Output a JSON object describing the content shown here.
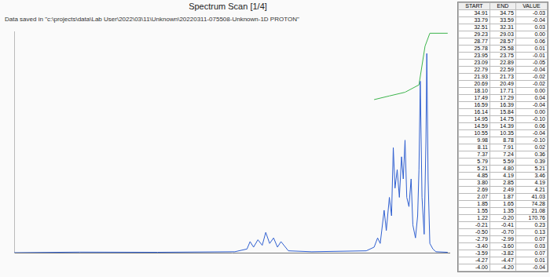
{
  "header": {
    "title": "Spectrum Scan [1/4]",
    "subtitle": "Data saved in \"c:\\projects\\data\\Lab User\\2022\\03\\11\\Unknown\\20220311-075508-Unknown-1D PROTON\""
  },
  "chart_data": {
    "type": "line",
    "xlim": [
      1,
      11
    ],
    "ylim": [
      0,
      120
    ],
    "tick_labels": false,
    "grid": false,
    "series": [
      {
        "color": "#2f5fd0",
        "x": [
          11,
          9.49,
          7.71,
          5.93,
          5.65,
          5.58,
          5.5,
          5.4,
          5.3,
          5.22,
          5.13,
          5.04,
          4.95,
          4.87,
          4.7,
          4.16,
          2.91,
          2.73,
          2.65,
          2.59,
          2.5,
          2.45,
          2.38,
          2.33,
          2.29,
          2.25,
          2.2,
          2.15,
          2.1,
          2.06,
          2.02,
          1.98,
          1.93,
          1.88,
          1.84,
          1.78,
          1.73,
          1.7,
          1.67,
          1.63,
          1.58,
          1.54,
          1.52,
          1.49,
          1.45,
          1.38,
          1.31,
          1.04
        ],
        "values": [
          0,
          0.3,
          0.2,
          0.5,
          2,
          6,
          3,
          7,
          4,
          11,
          5,
          8,
          3,
          6,
          1,
          0.5,
          1,
          3,
          8,
          5,
          23,
          12,
          30,
          20,
          57,
          35,
          45,
          30,
          52,
          40,
          61,
          30,
          25,
          40,
          15,
          8,
          20,
          45,
          93,
          30,
          10,
          60,
          108,
          40,
          5,
          2,
          0.5,
          0.2
        ]
      },
      {
        "color": "#3cb44b",
        "x": [
          2.73,
          2.38,
          2.02,
          1.7,
          1.56,
          1.45,
          1.04
        ],
        "values": [
          83,
          85,
          87,
          91,
          112,
          119,
          119
        ]
      }
    ]
  },
  "table": {
    "columns": [
      "START",
      "END",
      "VALUE"
    ],
    "rows": [
      [
        "34.91",
        "34.75",
        "-0.03"
      ],
      [
        "33.79",
        "33.59",
        "-0.04"
      ],
      [
        "32.51",
        "32.31",
        "0.03"
      ],
      [
        "29.23",
        "29.03",
        "0.00"
      ],
      [
        "28.77",
        "28.57",
        "0.06"
      ],
      [
        "25.78",
        "25.58",
        "0.01"
      ],
      [
        "23.95",
        "23.75",
        "-0.01"
      ],
      [
        "23.09",
        "22.89",
        "-0.05"
      ],
      [
        "22.79",
        "22.59",
        "-0.04"
      ],
      [
        "21.93",
        "21.73",
        "-0.02"
      ],
      [
        "20.69",
        "20.49",
        "-0.02"
      ],
      [
        "18.10",
        "17.71",
        "0.00"
      ],
      [
        "17.49",
        "17.29",
        "0.04"
      ],
      [
        "16.59",
        "16.39",
        "-0.04"
      ],
      [
        "16.14",
        "15.84",
        "0.00"
      ],
      [
        "14.95",
        "14.75",
        "-0.10"
      ],
      [
        "14.59",
        "14.39",
        "0.06"
      ],
      [
        "10.55",
        "10.35",
        "-0.04"
      ],
      [
        "9.98",
        "8.78",
        "-0.10"
      ],
      [
        "8.11",
        "7.91",
        "0.02"
      ],
      [
        "7.37",
        "7.24",
        "0.36"
      ],
      [
        "5.79",
        "5.59",
        "0.39"
      ],
      [
        "5.21",
        "4.80",
        "5.21"
      ],
      [
        "4.85",
        "4.19",
        "3.46"
      ],
      [
        "3.80",
        "2.85",
        "4.19"
      ],
      [
        "2.69",
        "2.49",
        "4.21"
      ],
      [
        "2.07",
        "1.87",
        "41.03"
      ],
      [
        "1.85",
        "1.65",
        "74.28"
      ],
      [
        "1.55",
        "1.35",
        "21.08"
      ],
      [
        "1.22",
        "-0.20",
        "170.76"
      ],
      [
        "-0.21",
        "-0.41",
        "0.23"
      ],
      [
        "-0.50",
        "-0.70",
        "0.13"
      ],
      [
        "-2.79",
        "-2.99",
        "0.07"
      ],
      [
        "-3.40",
        "-3.60",
        "0.03"
      ],
      [
        "-3.59",
        "-3.82",
        "0.07"
      ],
      [
        "-4.27",
        "-4.47",
        "0.01"
      ],
      [
        "-4.00",
        "-4.20",
        "-0.04"
      ]
    ]
  }
}
